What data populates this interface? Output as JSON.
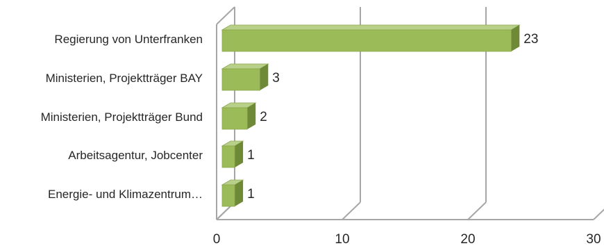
{
  "chart_data": {
    "type": "bar",
    "orientation": "horizontal",
    "style": "3d",
    "categories": [
      "Regierung von Unterfranken",
      "Ministerien, Projektträger BAY",
      "Ministerien, Projektträger Bund",
      "Arbeitsagentur, Jobcenter",
      "Energie- und Klimazentrum…"
    ],
    "values": [
      23,
      3,
      2,
      1,
      1
    ],
    "data_labels": [
      "23",
      "3",
      "2",
      "1",
      "1"
    ],
    "xlim": [
      0,
      30
    ],
    "xticks": [
      "0",
      "10",
      "20",
      "30"
    ],
    "grid": true,
    "legend": "none",
    "colors": {
      "bar_front": "#9BBB59",
      "bar_top": "#B8D08A",
      "bar_side": "#6E8A36",
      "grid": "#A6A6A6"
    }
  }
}
